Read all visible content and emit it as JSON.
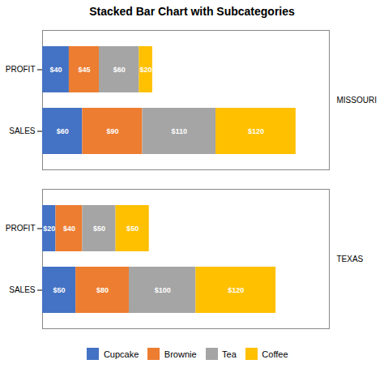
{
  "chart_data": {
    "type": "bar",
    "orientation": "horizontal",
    "stacked": true,
    "title": "Stacked Bar Chart with Subcategories",
    "categories": [
      "SALES",
      "PROFIT",
      "SALES",
      "PROFIT"
    ],
    "groups": [
      "TEXAS",
      "TEXAS",
      "MISSOURI",
      "MISSOURI"
    ],
    "series": [
      {
        "name": "Cupcake",
        "color": "#4472c4",
        "values": [
          50,
          20,
          60,
          40
        ],
        "value_labels": [
          "$50",
          "$20",
          "$60",
          "$40"
        ]
      },
      {
        "name": "Brownie",
        "color": "#ed7d31",
        "values": [
          80,
          40,
          90,
          45
        ],
        "value_labels": [
          "$80",
          "$40",
          "$90",
          "$45"
        ]
      },
      {
        "name": "Tea",
        "color": "#a5a5a5",
        "values": [
          100,
          50,
          110,
          60
        ],
        "value_labels": [
          "$100",
          "$50",
          "$110",
          "$60"
        ]
      },
      {
        "name": "Coffee",
        "color": "#ffc000",
        "values": [
          120,
          50,
          120,
          20
        ],
        "value_labels": [
          "$120",
          "$50",
          "$120",
          "$20"
        ]
      }
    ],
    "xlim": [
      0,
      430
    ],
    "tick_labels": "y",
    "data_labels": true,
    "legend": "bottom",
    "grid": false
  }
}
